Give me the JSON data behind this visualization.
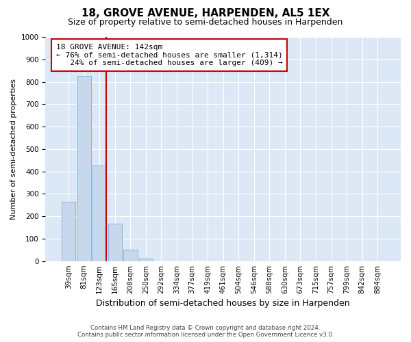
{
  "title": "18, GROVE AVENUE, HARPENDEN, AL5 1EX",
  "subtitle": "Size of property relative to semi-detached houses in Harpenden",
  "xlabel": "Distribution of semi-detached houses by size in Harpenden",
  "ylabel": "Number of semi-detached properties",
  "footer_line1": "Contains HM Land Registry data © Crown copyright and database right 2024.",
  "footer_line2": "Contains public sector information licensed under the Open Government Licence v3.0.",
  "categories": [
    "39sqm",
    "81sqm",
    "123sqm",
    "165sqm",
    "208sqm",
    "250sqm",
    "292sqm",
    "334sqm",
    "377sqm",
    "419sqm",
    "461sqm",
    "504sqm",
    "546sqm",
    "588sqm",
    "630sqm",
    "673sqm",
    "715sqm",
    "757sqm",
    "799sqm",
    "842sqm",
    "884sqm"
  ],
  "values": [
    265,
    825,
    425,
    168,
    52,
    12,
    0,
    0,
    0,
    0,
    0,
    0,
    0,
    0,
    0,
    0,
    0,
    0,
    0,
    0,
    0
  ],
  "bar_color": "#c8d8ec",
  "bar_edge_color": "#7aafd4",
  "highlight_line_index": 2,
  "highlight_label": "18 GROVE AVENUE: 142sqm",
  "pct_smaller": "76% of semi-detached houses are smaller (1,314)",
  "pct_larger": "24% of semi-detached houses are larger (409)",
  "ylim": [
    0,
    1000
  ],
  "yticks": [
    0,
    100,
    200,
    300,
    400,
    500,
    600,
    700,
    800,
    900,
    1000
  ],
  "bg_color": "#ffffff",
  "plot_bg_color": "#dce8f5",
  "grid_color": "#ffffff",
  "annotation_box_color": "#cc0000",
  "title_fontsize": 11,
  "subtitle_fontsize": 9,
  "tick_fontsize": 7.5
}
